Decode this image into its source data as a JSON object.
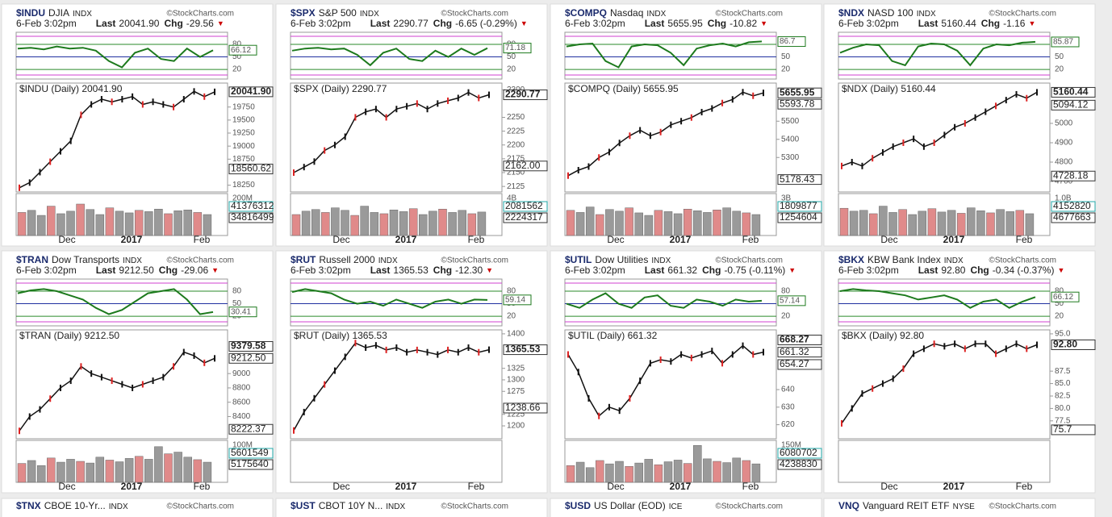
{
  "labels": {
    "last": "Last",
    "chg": "Chg",
    "down": "▼",
    "credit": "©StockCharts.com",
    "date": "6-Feb 3:02pm"
  },
  "xlabels": [
    "Dec",
    "2017",
    "Feb"
  ],
  "rsi_ylim": [
    -3,
    109
  ],
  "rsi_ticks": [
    80,
    50,
    20
  ],
  "vol_ylim": [
    0,
    100
  ],
  "panels": [
    {
      "sym": "$INDU",
      "name": "DJIA",
      "exch": "INDX",
      "last": "20041.90",
      "chg": "-29.56",
      "rsi_value": 66.12,
      "rsi": [
        70,
        72,
        68,
        75,
        70,
        72,
        65,
        40,
        25,
        60,
        70,
        45,
        40,
        70,
        50,
        66
      ],
      "price_title": "$INDU (Daily) 20041.90",
      "ylim": [
        18120,
        20210
      ],
      "yticks": [
        19750,
        19500,
        19250,
        19000,
        18750,
        18250
      ],
      "price": [
        18200,
        18300,
        18500,
        18700,
        18900,
        19100,
        19600,
        19800,
        19900,
        19850,
        19900,
        19950,
        19800,
        19850,
        19800,
        19750,
        19900,
        20050,
        19950,
        20041.9
      ],
      "price_labels": [
        {
          "value": 20041.9,
          "label": "20041.90"
        },
        18560.62
      ],
      "vol_ticks": [
        "200M"
      ],
      "vol_labels": [
        "41376312",
        "34816499"
      ],
      "volume": [
        55,
        60,
        48,
        70,
        52,
        58,
        75,
        62,
        50,
        66,
        58,
        54,
        60,
        57,
        63,
        52,
        59,
        61,
        55,
        50
      ]
    },
    {
      "sym": "$SPX",
      "name": "S&P 500",
      "exch": "INDX",
      "last": "2290.77",
      "chg": "-6.65 (-0.29%)",
      "rsi_value": 71.18,
      "rsi": [
        65,
        70,
        72,
        68,
        70,
        55,
        30,
        60,
        70,
        45,
        40,
        65,
        50,
        70,
        55,
        71
      ],
      "price_title": "$SPX (Daily) 2290.77",
      "ylim": [
        2115,
        2312
      ],
      "yticks": [
        2300,
        2250,
        2225,
        2200,
        2175,
        2150,
        2125
      ],
      "price": [
        2150,
        2160,
        2170,
        2190,
        2200,
        2215,
        2250,
        2260,
        2265,
        2250,
        2265,
        2270,
        2275,
        2265,
        2275,
        2280,
        2285,
        2295,
        2285,
        2290.77
      ],
      "price_labels": [
        2290.77,
        {
          "value": 2162,
          "label": "2162.00"
        }
      ],
      "vol_ticks": [
        "4B"
      ],
      "vol_labels": [
        "2081562",
        "2224317"
      ],
      "volume": [
        50,
        58,
        62,
        55,
        66,
        60,
        48,
        70,
        55,
        52,
        61,
        57,
        64,
        50,
        58,
        63,
        55,
        60,
        52,
        56
      ]
    },
    {
      "sym": "$COMPQ",
      "name": "Nasdaq",
      "exch": "INDX",
      "last": "5655.95",
      "chg": "-10.82",
      "rsi_value": 86.7,
      "rsi": [
        75,
        80,
        82,
        40,
        25,
        75,
        80,
        78,
        60,
        30,
        70,
        78,
        82,
        75,
        85,
        87
      ],
      "price_title": "$COMPQ (Daily) 5655.95",
      "ylim": [
        5110,
        5710
      ],
      "yticks": [
        5500,
        5400,
        5300
      ],
      "price": [
        5200,
        5230,
        5250,
        5300,
        5330,
        5380,
        5420,
        5450,
        5420,
        5440,
        5480,
        5500,
        5520,
        5550,
        5570,
        5600,
        5620,
        5660,
        5640,
        5655.95
      ],
      "price_labels": [
        5655.95,
        5593.78,
        5178.43
      ],
      "vol_ticks": [
        "3B",
        "2B"
      ],
      "vol_labels": [
        "1809877",
        "1254604"
      ],
      "volume": [
        60,
        55,
        68,
        50,
        62,
        58,
        66,
        54,
        48,
        60,
        57,
        52,
        63,
        59,
        55,
        61,
        66,
        58,
        54,
        50
      ]
    },
    {
      "sym": "$NDX",
      "name": "NASD 100",
      "exch": "INDX",
      "last": "5160.44",
      "chg": "-1.16",
      "rsi_value": 85.87,
      "rsi": [
        60,
        72,
        80,
        78,
        40,
        30,
        75,
        82,
        80,
        65,
        30,
        70,
        80,
        78,
        84,
        86
      ],
      "price_title": "$NDX (Daily) 5160.44",
      "ylim": [
        4646,
        5208
      ],
      "yticks": [
        5000,
        4900,
        4800,
        4700
      ],
      "price": [
        4780,
        4800,
        4780,
        4820,
        4850,
        4880,
        4900,
        4920,
        4880,
        4900,
        4940,
        4980,
        5000,
        5030,
        5060,
        5090,
        5120,
        5150,
        5130,
        5160.44
      ],
      "price_labels": [
        5160.44,
        5094.12,
        4728.18
      ],
      "vol_ticks": [
        "1.0B"
      ],
      "vol_labels": [
        "4152820",
        "4677663"
      ],
      "volume": [
        65,
        58,
        60,
        52,
        70,
        55,
        62,
        50,
        58,
        64,
        56,
        60,
        53,
        66,
        59,
        54,
        62,
        57,
        60,
        52
      ]
    },
    {
      "sym": "$TRAN",
      "name": "Dow Transports",
      "exch": "INDX",
      "last": "9212.50",
      "chg": "-29.06",
      "rsi_value": 30.41,
      "rsi": [
        75,
        82,
        85,
        80,
        70,
        60,
        40,
        25,
        35,
        55,
        75,
        80,
        85,
        60,
        25,
        30
      ],
      "price_title": "$TRAN (Daily) 9212.50",
      "ylim": [
        8090,
        9610
      ],
      "yticks": [
        9000,
        8800,
        8600,
        8400
      ],
      "price": [
        8200,
        8400,
        8500,
        8650,
        8800,
        8900,
        9100,
        9000,
        8950,
        8900,
        8850,
        8800,
        8850,
        8900,
        8950,
        9100,
        9300,
        9250,
        9150,
        9212.5
      ],
      "price_labels": [
        9379.58,
        {
          "value": 9212.5,
          "label": "9212.50"
        },
        8222.37
      ],
      "vol_ticks": [
        "100M"
      ],
      "vol_labels": [
        "5601549",
        "5175640"
      ],
      "volume": [
        45,
        52,
        40,
        58,
        48,
        55,
        50,
        46,
        60,
        53,
        49,
        57,
        62,
        55,
        85,
        68,
        72,
        60,
        54,
        48
      ]
    },
    {
      "sym": "$RUT",
      "name": "Russell 2000",
      "exch": "INDX",
      "last": "1365.53",
      "chg": "-12.30",
      "rsi_value": 59.14,
      "rsi": [
        78,
        85,
        80,
        75,
        60,
        50,
        55,
        45,
        60,
        50,
        40,
        55,
        60,
        50,
        60,
        59
      ],
      "price_title": "$RUT (Daily) 1365.53",
      "ylim": [
        1172,
        1408.6
      ],
      "yticks": [
        1400,
        1325,
        1300,
        1275,
        1225,
        1200
      ],
      "price": [
        1190,
        1230,
        1260,
        1290,
        1320,
        1350,
        1380,
        1370,
        1375,
        1365,
        1370,
        1360,
        1365,
        1360,
        1355,
        1365,
        1360,
        1370,
        1360,
        1365.53
      ],
      "price_labels": [
        1365.53,
        1238.66
      ],
      "vol_ticks": [],
      "vol_labels": [],
      "volume": [
        0,
        0,
        0,
        0,
        0,
        0,
        0,
        0,
        0,
        0,
        0,
        0,
        0,
        0,
        0,
        0,
        0,
        0,
        0,
        0
      ]
    },
    {
      "sym": "$UTIL",
      "name": "Dow Utilities",
      "exch": "INDX",
      "last": "661.32",
      "chg": "-0.75 (-0.11%)",
      "rsi_value": 57.14,
      "rsi": [
        50,
        40,
        60,
        75,
        50,
        40,
        65,
        70,
        45,
        40,
        60,
        55,
        45,
        60,
        55,
        57
      ],
      "price_title": "$UTIL (Daily) 661.32",
      "ylim": [
        612,
        674
      ],
      "yticks": [
        640,
        630,
        620
      ],
      "price": [
        660,
        650,
        635,
        625,
        630,
        628,
        635,
        645,
        655,
        657,
        656,
        660,
        658,
        660,
        662,
        655,
        660,
        665,
        660,
        661.32
      ],
      "price_labels": [
        668.27,
        661.32,
        654.27
      ],
      "vol_ticks": [
        "150M",
        "100M"
      ],
      "vol_labels": [
        "6080702",
        "4238830"
      ],
      "volume": [
        40,
        48,
        35,
        52,
        44,
        50,
        38,
        46,
        55,
        42,
        49,
        53,
        45,
        88,
        56,
        50,
        47,
        58,
        52,
        44
      ]
    },
    {
      "sym": "$BKX",
      "name": "KBW Bank Index",
      "exch": "INDX",
      "last": "92.80",
      "chg": "-0.34 (-0.37%)",
      "rsi_value": 66.12,
      "rsi": [
        80,
        85,
        82,
        80,
        75,
        70,
        60,
        65,
        70,
        60,
        40,
        55,
        60,
        40,
        55,
        66
      ],
      "price_title": "$BKX (Daily) 92.80",
      "ylim": [
        73.9,
        95.8
      ],
      "yticks": [
        {
          "value": 95,
          "label": "95.0"
        },
        87.5,
        {
          "value": 85,
          "label": "85.0"
        },
        82.5,
        {
          "value": 80,
          "label": "80.0"
        },
        77.5
      ],
      "price": [
        77,
        80,
        83,
        84,
        85,
        86,
        88,
        91,
        92,
        93,
        92.5,
        93,
        92,
        93,
        93,
        91,
        92,
        93,
        92,
        92.8
      ],
      "price_labels": [
        {
          "value": 92.8,
          "label": "92.80"
        },
        75.7
      ],
      "vol_ticks": [],
      "vol_labels": [],
      "volume": [
        0,
        0,
        0,
        0,
        0,
        0,
        0,
        0,
        0,
        0,
        0,
        0,
        0,
        0,
        0,
        0,
        0,
        0,
        0,
        0
      ]
    }
  ],
  "bottom": [
    {
      "sym": "$TNX",
      "name": "CBOE 10-Yr...",
      "exch": "INDX"
    },
    {
      "sym": "$UST",
      "name": "CBOT 10Y N...",
      "exch": "INDX"
    },
    {
      "sym": "$USD",
      "name": "US Dollar (EOD)",
      "exch": "ICE"
    },
    {
      "sym": "VNQ",
      "name": "Vanguard REIT ETF",
      "exch": "NYSE"
    }
  ]
}
